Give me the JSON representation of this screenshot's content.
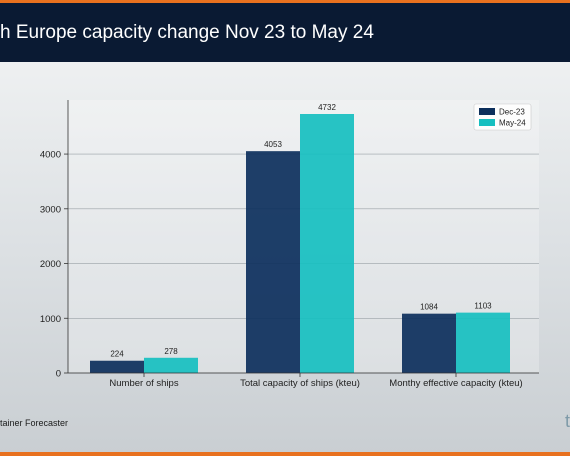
{
  "title": "h Europe capacity change Nov 23 to May 24",
  "footer": {
    "source": "tainer Forecaster",
    "brand": "t"
  },
  "colors": {
    "title_bar": "#0a1a33",
    "accent": "#e8711f",
    "series_1": "#0c2f5c",
    "series_2": "#16bfc0"
  },
  "chart_data": {
    "type": "bar",
    "categories": [
      "Number of ships",
      "Total capacity of ships (kteu)",
      "Monthy effective capacity (kteu)"
    ],
    "series": [
      {
        "name": "Dec-23",
        "values": [
          224,
          4053,
          1084
        ]
      },
      {
        "name": "May-24",
        "values": [
          278,
          4732,
          1103
        ]
      }
    ],
    "data_labels": [
      [
        "224",
        "4053",
        "1084"
      ],
      [
        "278",
        "4732",
        "1103"
      ]
    ],
    "yticks": [
      0,
      1000,
      2000,
      3000,
      4000
    ],
    "ylim": [
      0,
      5000
    ],
    "grid": true,
    "legend_position": "top-right"
  }
}
